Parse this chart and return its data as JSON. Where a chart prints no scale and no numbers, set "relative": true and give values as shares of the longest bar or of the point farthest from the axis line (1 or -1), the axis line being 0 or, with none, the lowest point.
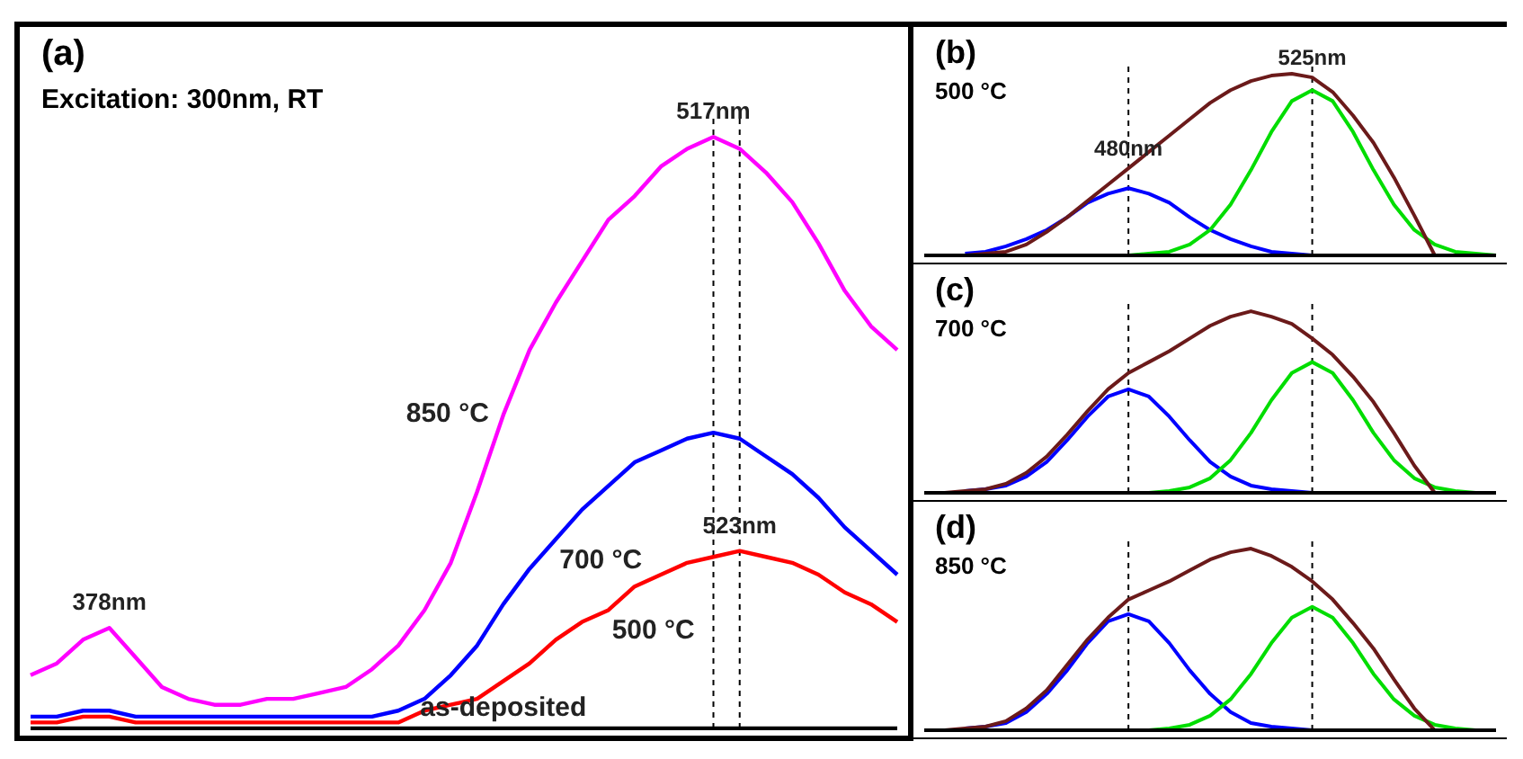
{
  "chart_data": [
    {
      "type": "line",
      "title": "(a)",
      "relative": true,
      "grid": false,
      "legend": false,
      "categories": [
        null,
        null,
        null,
        null,
        null,
        null,
        null,
        null,
        null,
        null,
        null,
        null,
        null,
        null,
        null,
        null,
        null,
        null,
        null,
        null,
        null,
        null,
        null,
        null,
        null,
        null,
        null,
        null,
        null,
        null,
        null,
        null,
        null,
        null
      ],
      "annotations": [
        "Excitation: 300nm, RT",
        "378nm",
        "517nm",
        "523nm"
      ],
      "series": [
        {
          "name": "850 °C",
          "color": "#ff00ff",
          "values": [
            0.09,
            0.11,
            0.15,
            0.17,
            0.12,
            0.07,
            0.05,
            0.04,
            0.04,
            0.05,
            0.05,
            0.06,
            0.07,
            0.1,
            0.14,
            0.2,
            0.28,
            0.4,
            0.53,
            0.64,
            0.72,
            0.79,
            0.86,
            0.9,
            0.95,
            0.98,
            1,
            0.98,
            0.94,
            0.89,
            0.82,
            0.74,
            0.68,
            0.64
          ]
        },
        {
          "name": "700 °C",
          "color": "#0000ff",
          "values": [
            0.02,
            0.02,
            0.03,
            0.03,
            0.02,
            0.02,
            0.02,
            0.02,
            0.02,
            0.02,
            0.02,
            0.02,
            0.02,
            0.02,
            0.03,
            0.05,
            0.09,
            0.14,
            0.21,
            0.27,
            0.32,
            0.37,
            0.41,
            0.45,
            0.47,
            0.49,
            0.5,
            0.49,
            0.46,
            0.43,
            0.39,
            0.34,
            0.3,
            0.26
          ]
        },
        {
          "name": "500 °C",
          "color": "#ff0000",
          "values": [
            0.01,
            0.01,
            0.02,
            0.02,
            0.01,
            0.01,
            0.01,
            0.01,
            0.01,
            0.01,
            0.01,
            0.01,
            0.01,
            0.01,
            0.01,
            0.03,
            0.04,
            0.05,
            0.08,
            0.11,
            0.15,
            0.18,
            0.2,
            0.24,
            0.26,
            0.28,
            0.29,
            0.3,
            0.29,
            0.28,
            0.26,
            0.23,
            0.21,
            0.18
          ]
        },
        {
          "name": "as-deposited",
          "color": "#000000",
          "values": [
            0,
            0,
            0,
            0,
            0,
            0,
            0,
            0,
            0,
            0,
            0,
            0,
            0,
            0,
            0,
            0,
            0,
            0,
            0,
            0,
            0,
            0,
            0,
            0,
            0,
            0,
            0,
            0,
            0,
            0,
            0,
            0,
            0,
            0
          ]
        }
      ]
    },
    {
      "type": "line",
      "title": "(b)",
      "relative": true,
      "grid": false,
      "legend": false,
      "categories": [
        null,
        null,
        null,
        null,
        null,
        null,
        null,
        null,
        null,
        null,
        null,
        null,
        null,
        null,
        null,
        null,
        null,
        null,
        null,
        null,
        null,
        null,
        null,
        null,
        null,
        null,
        null,
        null,
        null
      ],
      "annotations": [
        "500 °C",
        "480nm",
        "525nm"
      ],
      "series": [
        {
          "color": "#0000ff",
          "values": [
            null,
            null,
            0.01,
            0.02,
            0.05,
            0.09,
            0.14,
            0.21,
            0.29,
            0.34,
            0.37,
            0.34,
            0.29,
            0.21,
            0.14,
            0.09,
            0.05,
            0.02,
            0.01,
            0,
            null,
            null,
            null,
            null,
            null,
            null,
            null,
            null,
            null
          ]
        },
        {
          "color": "#00dd00",
          "values": [
            null,
            null,
            null,
            null,
            null,
            null,
            null,
            null,
            null,
            null,
            0,
            0.01,
            0.02,
            0.06,
            0.14,
            0.28,
            0.47,
            0.68,
            0.85,
            0.91,
            0.85,
            0.68,
            0.47,
            0.28,
            0.14,
            0.06,
            0.02,
            0.01,
            0
          ]
        },
        {
          "color": "#6b1a1a",
          "values": [
            0,
            0,
            0,
            0.01,
            0.02,
            0.06,
            0.13,
            0.21,
            0.3,
            0.39,
            0.48,
            0.57,
            0.66,
            0.75,
            0.84,
            0.91,
            0.96,
            0.99,
            1,
            0.98,
            0.9,
            0.77,
            0.62,
            0.43,
            0.22,
            0,
            null,
            null,
            null
          ]
        }
      ]
    },
    {
      "type": "line",
      "title": "(c)",
      "relative": true,
      "grid": false,
      "legend": false,
      "categories": [
        null,
        null,
        null,
        null,
        null,
        null,
        null,
        null,
        null,
        null,
        null,
        null,
        null,
        null,
        null,
        null,
        null,
        null,
        null,
        null,
        null,
        null,
        null,
        null,
        null,
        null,
        null,
        null,
        null
      ],
      "annotations": [
        "700 °C"
      ],
      "series": [
        {
          "color": "#0000ff",
          "values": [
            null,
            null,
            0.01,
            0.02,
            0.04,
            0.09,
            0.17,
            0.29,
            0.42,
            0.53,
            0.57,
            0.53,
            0.42,
            0.29,
            0.17,
            0.09,
            0.04,
            0.02,
            0.01,
            0,
            null,
            null,
            null,
            null,
            null,
            null,
            null,
            null,
            null
          ]
        },
        {
          "color": "#00dd00",
          "values": [
            null,
            null,
            null,
            null,
            null,
            null,
            null,
            null,
            null,
            null,
            null,
            0,
            0.01,
            0.03,
            0.08,
            0.18,
            0.33,
            0.51,
            0.66,
            0.72,
            0.66,
            0.51,
            0.33,
            0.18,
            0.08,
            0.03,
            0.01,
            0,
            0
          ]
        },
        {
          "color": "#6b1a1a",
          "values": [
            0,
            0,
            0.01,
            0.02,
            0.05,
            0.11,
            0.2,
            0.32,
            0.45,
            0.57,
            0.66,
            0.72,
            0.78,
            0.85,
            0.92,
            0.97,
            1,
            0.97,
            0.93,
            0.85,
            0.76,
            0.64,
            0.5,
            0.33,
            0.15,
            0,
            null,
            null,
            null
          ]
        }
      ]
    },
    {
      "type": "line",
      "title": "(d)",
      "relative": true,
      "grid": false,
      "legend": false,
      "categories": [
        null,
        null,
        null,
        null,
        null,
        null,
        null,
        null,
        null,
        null,
        null,
        null,
        null,
        null,
        null,
        null,
        null,
        null,
        null,
        null,
        null,
        null,
        null,
        null,
        null,
        null,
        null,
        null,
        null
      ],
      "annotations": [
        "850 °C"
      ],
      "series": [
        {
          "color": "#0000ff",
          "values": [
            null,
            null,
            0.01,
            0.02,
            0.04,
            0.1,
            0.2,
            0.33,
            0.48,
            0.6,
            0.64,
            0.6,
            0.48,
            0.33,
            0.2,
            0.1,
            0.04,
            0.02,
            0.01,
            0,
            null,
            null,
            null,
            null,
            null,
            null,
            null,
            null,
            null
          ]
        },
        {
          "color": "#00dd00",
          "values": [
            null,
            null,
            null,
            null,
            null,
            null,
            null,
            null,
            null,
            null,
            null,
            0,
            0.01,
            0.03,
            0.08,
            0.17,
            0.31,
            0.48,
            0.62,
            0.68,
            0.62,
            0.48,
            0.31,
            0.17,
            0.08,
            0.03,
            0.01,
            0,
            0
          ]
        },
        {
          "color": "#6b1a1a",
          "values": [
            0,
            0,
            0.01,
            0.02,
            0.05,
            0.12,
            0.22,
            0.36,
            0.5,
            0.62,
            0.72,
            0.77,
            0.82,
            0.88,
            0.94,
            0.98,
            1,
            0.96,
            0.9,
            0.82,
            0.72,
            0.59,
            0.45,
            0.28,
            0.12,
            0,
            null,
            null,
            null
          ]
        }
      ]
    }
  ]
}
